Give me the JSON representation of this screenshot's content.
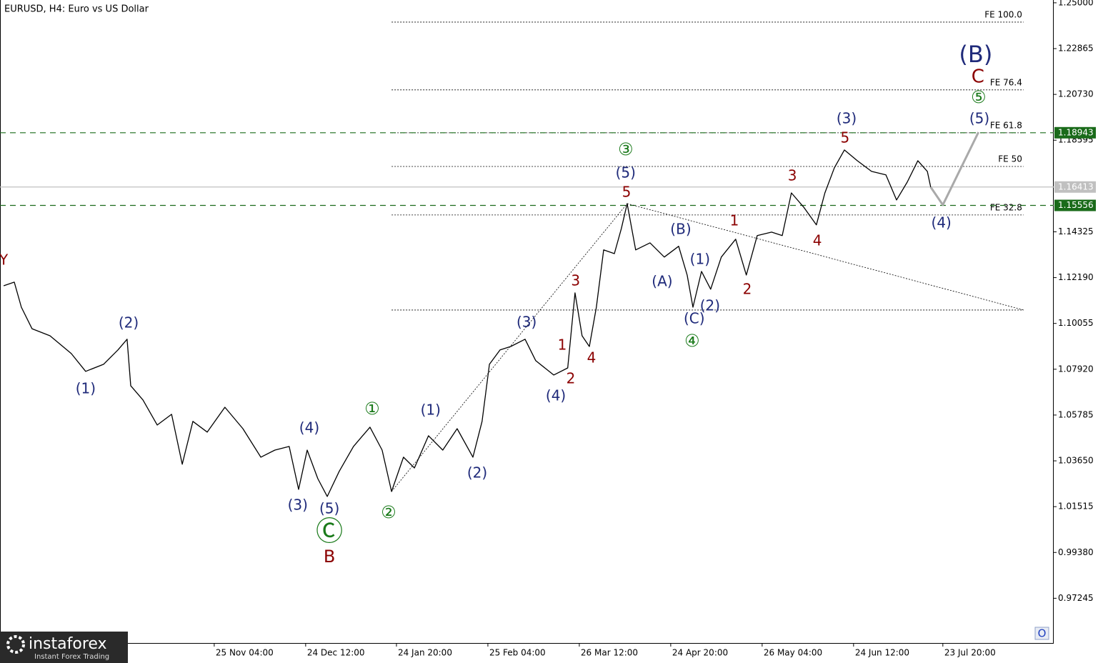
{
  "chart_data": {
    "type": "line",
    "title": "EURUSD, H4:  Euro vs US Dollar",
    "xlim": [
      0,
      336.4
    ],
    "ylim": [
      0.9516,
      1.2513
    ],
    "yticks": [
      {
        "value": 1.25,
        "label": "1.25000"
      },
      1.22865,
      {
        "value": 1.2073,
        "label": "1.20730"
      },
      1.18595,
      1.14325,
      {
        "value": 1.1219,
        "label": "1.12190"
      },
      1.10055,
      {
        "value": 1.0792,
        "label": "1.07920"
      },
      1.05785,
      {
        "value": 1.0365,
        "label": "1.03650"
      },
      1.01515,
      {
        "value": 0.9938,
        "label": "0.99380"
      },
      0.97245
    ],
    "xticks": [
      {
        "value": 70.3,
        "label": "25 Nov 04:00"
      },
      {
        "value": 100.3,
        "label": "24 Dec 12:00"
      },
      {
        "value": 130.1,
        "label": "24 Jan 20:00"
      },
      {
        "value": 160.1,
        "label": "25 Feb 04:00"
      },
      {
        "value": 190.1,
        "label": "26 Mar 12:00"
      },
      {
        "value": 220.1,
        "label": "24 Apr 20:00"
      },
      {
        "value": 250.1,
        "label": "26 May 04:00"
      },
      {
        "value": 280.1,
        "label": "24 Jun 12:00"
      },
      {
        "value": 309.4,
        "label": "23 Jul 20:00"
      }
    ],
    "series": [
      {
        "color": "#000000",
        "width": 1.3,
        "dash": "none",
        "x": [
          1.2,
          4.7,
          7.0,
          10.5,
          16.4,
          23.4,
          28.1,
          34.0,
          38.7,
          41.7,
          42.9,
          46.9,
          51.6,
          56.3,
          59.8,
          63.3,
          68.0,
          73.8,
          79.7,
          85.6,
          90.2,
          94.9,
          98.0,
          100.8,
          104.3,
          107.4,
          111.3,
          116.0,
          121.4,
          125.4,
          128.5,
          132.4,
          136.0,
          140.6,
          145.3,
          150.0,
          155.2,
          158.2,
          160.6,
          164.1,
          167.6,
          172.3,
          175.8,
          181.7,
          186.3,
          188.7,
          191.0,
          193.4,
          195.7,
          198.1,
          201.6,
          203.9,
          205.8,
          208.6,
          213.3,
          218.0,
          222.7,
          225.5,
          227.4,
          230.2,
          233.2,
          236.7,
          241.4,
          244.9,
          248.5,
          253.2,
          256.7,
          259.7,
          263.7,
          267.9,
          270.7,
          273.8,
          277.1,
          281.3,
          286.0,
          290.7,
          294.2,
          297.7,
          301.2,
          304.3,
          305.4
        ],
        "values": [
          1.1181,
          1.1198,
          1.1081,
          1.0981,
          1.0948,
          1.0865,
          1.0782,
          1.0815,
          1.0882,
          1.0932,
          1.0715,
          1.0649,
          1.0532,
          1.0582,
          1.0349,
          1.0549,
          1.0499,
          1.0615,
          1.0515,
          1.0382,
          1.0415,
          1.0432,
          1.0232,
          1.0415,
          1.0282,
          1.0199,
          1.0316,
          1.0432,
          1.0522,
          1.0415,
          1.0222,
          1.0382,
          1.0332,
          1.0482,
          1.0415,
          1.0515,
          1.0382,
          1.0549,
          1.0815,
          1.0882,
          1.0898,
          1.0932,
          1.0832,
          1.0765,
          1.0798,
          1.1148,
          1.0948,
          1.0898,
          1.1081,
          1.1348,
          1.1331,
          1.1448,
          1.1564,
          1.1348,
          1.1381,
          1.1315,
          1.1365,
          1.1231,
          1.1081,
          1.1248,
          1.1165,
          1.1315,
          1.1398,
          1.1231,
          1.1415,
          1.1431,
          1.1415,
          1.1614,
          1.1548,
          1.1465,
          1.1614,
          1.1731,
          1.1814,
          1.1764,
          1.1714,
          1.1698,
          1.1581,
          1.1664,
          1.1764,
          1.1714,
          1.1641
        ]
      },
      {
        "color": "#a9a9a9",
        "width": 3,
        "dash": "none",
        "x": [
          305.4,
          309.4,
          321.1
        ],
        "values": [
          1.1641,
          1.1558,
          1.1897
        ]
      },
      {
        "color": "#000000",
        "width": 0.8,
        "dash": "2,2",
        "x": [
          128.5,
          205.8
        ],
        "values": [
          1.0222,
          1.1564
        ]
      },
      {
        "color": "#000000",
        "width": 0.8,
        "dash": "2,2",
        "x": [
          205.8,
          335.9
        ],
        "values": [
          1.1564,
          1.1068
        ]
      }
    ],
    "fib_x": [
      128.5,
      335.9
    ],
    "fib_levels": [
      {
        "label": "FE 100.0",
        "value": 1.241
      },
      {
        "label": "FE 76.4",
        "value": 1.2094
      },
      {
        "label": "FE 61.8",
        "value": 1.1894
      },
      {
        "label": "FE 50",
        "value": 1.1737
      },
      {
        "label": "FE 32.8",
        "value": 1.1511
      },
      {
        "value": 1.1068
      }
    ],
    "price_lines": [
      {
        "value": 1.18943,
        "color": "#1a6b1a",
        "dash": "8,6"
      },
      {
        "value": 1.15556,
        "color": "#1a6b1a",
        "dash": "8,6"
      },
      {
        "value": 1.16413,
        "color": "#c0c0c0",
        "dash": "none"
      }
    ],
    "annotations": [
      {
        "text": "(2)",
        "x": 42.2,
        "y": 1.1005,
        "color": "#1f2a7a",
        "size": 20
      },
      {
        "text": "(1)",
        "x": 28.1,
        "y": 1.0698,
        "color": "#1f2a7a",
        "size": 20
      },
      {
        "text": "(4)",
        "x": 101.5,
        "y": 1.0515,
        "color": "#1f2a7a",
        "size": 20
      },
      {
        "text": "(3)",
        "x": 97.7,
        "y": 1.0156,
        "color": "#1f2a7a",
        "size": 20
      },
      {
        "text": "(5)",
        "x": 108.1,
        "y": 1.0139,
        "color": "#1f2a7a",
        "size": 20
      },
      {
        "text": "Ⓒ",
        "x": 108.1,
        "y": 1.0029,
        "color": "#1a7a1a",
        "size": 38
      },
      {
        "text": "B",
        "x": 108.1,
        "y": 0.9916,
        "color": "#8b0000",
        "size": 24
      },
      {
        "text": "①",
        "x": 122.1,
        "y": 1.0605,
        "color": "#1a7a1a",
        "size": 24
      },
      {
        "text": "②",
        "x": 127.5,
        "y": 1.0122,
        "color": "#1a7a1a",
        "size": 24
      },
      {
        "text": "(1)",
        "x": 141.3,
        "y": 1.0599,
        "color": "#1f2a7a",
        "size": 20
      },
      {
        "text": "(2)",
        "x": 156.6,
        "y": 1.0306,
        "color": "#1f2a7a",
        "size": 20
      },
      {
        "text": "(3)",
        "x": 172.8,
        "y": 1.1008,
        "color": "#1f2a7a",
        "size": 20
      },
      {
        "text": "(4)",
        "x": 182.4,
        "y": 1.0665,
        "color": "#1f2a7a",
        "size": 20
      },
      {
        "text": "1",
        "x": 184.5,
        "y": 1.0902,
        "color": "#8b0000",
        "size": 20
      },
      {
        "text": "2",
        "x": 187.3,
        "y": 1.0745,
        "color": "#8b0000",
        "size": 20
      },
      {
        "text": "3",
        "x": 188.9,
        "y": 1.1201,
        "color": "#8b0000",
        "size": 20
      },
      {
        "text": "4",
        "x": 194.1,
        "y": 1.0842,
        "color": "#8b0000",
        "size": 20
      },
      {
        "text": "5",
        "x": 205.6,
        "y": 1.1614,
        "color": "#8b0000",
        "size": 20
      },
      {
        "text": "(5)",
        "x": 205.3,
        "y": 1.1704,
        "color": "#1f2a7a",
        "size": 20
      },
      {
        "text": "③",
        "x": 205.3,
        "y": 1.1814,
        "color": "#1a7a1a",
        "size": 24
      },
      {
        "text": "(B)",
        "x": 223.4,
        "y": 1.1441,
        "color": "#1f2a7a",
        "size": 20
      },
      {
        "text": "(A)",
        "x": 217.3,
        "y": 1.1198,
        "color": "#1f2a7a",
        "size": 20
      },
      {
        "text": "(1)",
        "x": 229.7,
        "y": 1.1301,
        "color": "#1f2a7a",
        "size": 20
      },
      {
        "text": "(2)",
        "x": 233.0,
        "y": 1.1085,
        "color": "#1f2a7a",
        "size": 20
      },
      {
        "text": "(C)",
        "x": 227.8,
        "y": 1.1025,
        "color": "#1f2a7a",
        "size": 20
      },
      {
        "text": "④",
        "x": 227.1,
        "y": 1.0922,
        "color": "#1a7a1a",
        "size": 24
      },
      {
        "text": "1",
        "x": 241.0,
        "y": 1.1481,
        "color": "#8b0000",
        "size": 20
      },
      {
        "text": "2",
        "x": 245.2,
        "y": 1.1161,
        "color": "#8b0000",
        "size": 20
      },
      {
        "text": "3",
        "x": 260.0,
        "y": 1.1691,
        "color": "#8b0000",
        "size": 20
      },
      {
        "text": "4",
        "x": 268.2,
        "y": 1.1388,
        "color": "#8b0000",
        "size": 20
      },
      {
        "text": "(3)",
        "x": 277.8,
        "y": 1.1957,
        "color": "#1f2a7a",
        "size": 20
      },
      {
        "text": "5",
        "x": 277.3,
        "y": 1.1867,
        "color": "#8b0000",
        "size": 20
      },
      {
        "text": "(4)",
        "x": 308.9,
        "y": 1.1471,
        "color": "#1f2a7a",
        "size": 20
      },
      {
        "text": "(5)",
        "x": 321.4,
        "y": 1.1957,
        "color": "#1f2a7a",
        "size": 20
      },
      {
        "text": "⑤",
        "x": 321.1,
        "y": 1.2057,
        "color": "#1a7a1a",
        "size": 24
      },
      {
        "text": "C",
        "x": 320.9,
        "y": 1.2154,
        "color": "#8b0000",
        "size": 26
      },
      {
        "text": "(B)",
        "x": 320.2,
        "y": 1.2254,
        "color": "#1f2a7a",
        "size": 32
      },
      {
        "text": "Y",
        "x": 1.2,
        "y": 1.1298,
        "color": "#8b0000",
        "size": 20
      }
    ],
    "logo": {
      "name": "instaforex",
      "tagline": "Instant Forex Trading"
    },
    "corner_mark": "O"
  }
}
